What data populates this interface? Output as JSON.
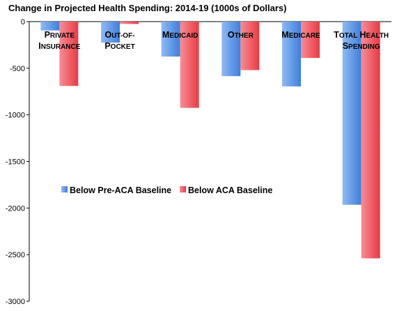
{
  "chart_data": {
    "type": "bar",
    "title": "Change in Projected Health Spending: 2014-19 (1000s of Dollars)",
    "xlabel": "",
    "ylabel": "",
    "ylim": [
      -3000,
      0
    ],
    "yticks": [
      "0",
      "-500",
      "-1000",
      "-1500",
      "-2000",
      "-2500",
      "-3000"
    ],
    "grid": false,
    "legend_position": "lower-left",
    "categories": [
      [
        "PRIVATE",
        "INSURANCE"
      ],
      [
        "OUT-OF-",
        "POCKET"
      ],
      [
        "MEDICAID"
      ],
      [
        "OTHER"
      ],
      [
        "MEDICARE"
      ],
      [
        "TOTAL HEALTH",
        "SPENDING"
      ]
    ],
    "series": [
      {
        "name": "Below Pre-ACA Baseline",
        "color": "#4a86e8",
        "values": [
          -95,
          -225,
          -375,
          -585,
          -695,
          -1965
        ]
      },
      {
        "name": "Below ACA Baseline",
        "color": "#f0454f",
        "values": [
          -690,
          -25,
          -925,
          -520,
          -390,
          -2540
        ]
      }
    ]
  }
}
